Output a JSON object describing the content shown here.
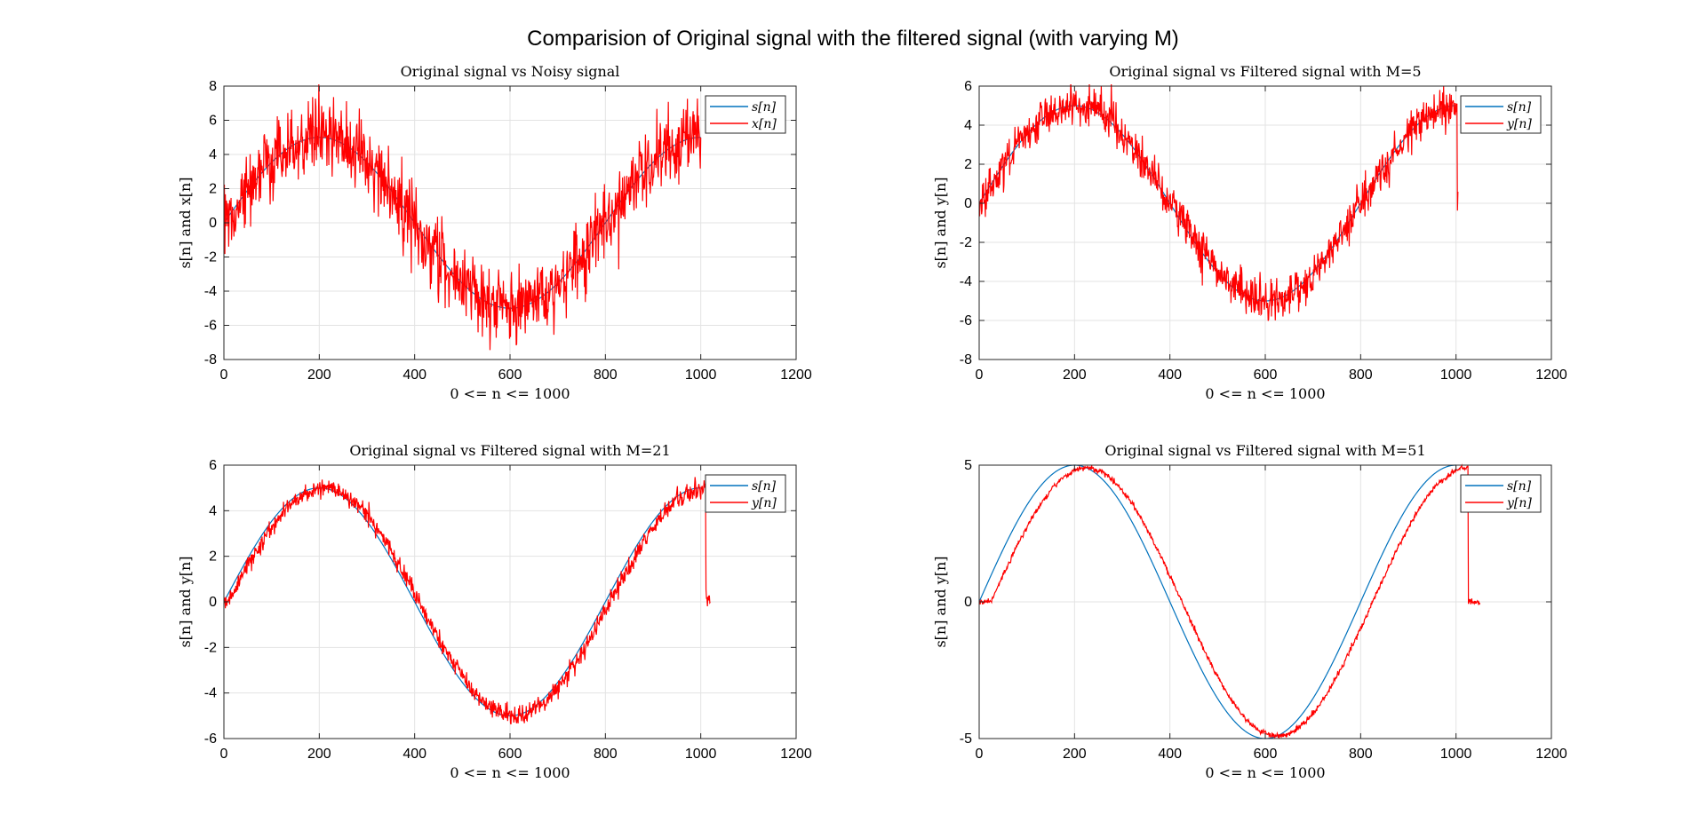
{
  "figure_title": "Comparision of Original signal with the filtered signal (with varying M)",
  "colors": {
    "original": "#0072BD",
    "filtered": "#FF0000",
    "grid": "#e3e3e3",
    "axes": "#262626"
  },
  "chart_data": [
    {
      "type": "line",
      "title": "Original signal vs Noisy signal",
      "xlabel": "0 <= n <= 1000",
      "ylabel": "s[n] and x[n]",
      "xlim": [
        0,
        1200
      ],
      "ylim": [
        -8,
        8
      ],
      "xticks": [
        "0",
        "200",
        "400",
        "600",
        "800",
        "1000",
        "1200"
      ],
      "yticks": [
        "-8",
        "-6",
        "-4",
        "-2",
        "0",
        "2",
        "4",
        "6",
        "8"
      ],
      "grid": true,
      "legend_position": "top-right",
      "series": [
        {
          "name": "s[n]",
          "color": "#0072BD",
          "amplitude": 5,
          "period": 800,
          "n_start": 0,
          "n_end": 1000,
          "shift": 0,
          "noise": 0
        },
        {
          "name": "x[n]",
          "color": "#FF0000",
          "amplitude": 5,
          "period": 800,
          "n_start": 0,
          "n_end": 1000,
          "shift": 0,
          "noise": 1.1
        }
      ]
    },
    {
      "type": "line",
      "title": "Original signal vs Filtered signal with M=5",
      "xlabel": "0 <= n <= 1000",
      "ylabel": "s[n] and y[n]",
      "xlim": [
        0,
        1200
      ],
      "ylim": [
        -8,
        6
      ],
      "xticks": [
        "0",
        "200",
        "400",
        "600",
        "800",
        "1000",
        "1200"
      ],
      "yticks": [
        "-8",
        "-6",
        "-4",
        "-2",
        "0",
        "2",
        "4",
        "6"
      ],
      "grid": true,
      "legend_position": "top-right",
      "series": [
        {
          "name": "s[n]",
          "color": "#0072BD",
          "amplitude": 5,
          "period": 800,
          "n_start": 0,
          "n_end": 1000,
          "shift": 0,
          "noise": 0
        },
        {
          "name": "y[n]",
          "color": "#FF0000",
          "amplitude": 5,
          "period": 800,
          "n_start": 0,
          "n_end": 1004,
          "shift": 2,
          "noise": 0.5
        }
      ]
    },
    {
      "type": "line",
      "title": "Original signal vs Filtered signal with M=21",
      "xlabel": "0 <= n <= 1000",
      "ylabel": "s[n] and y[n]",
      "xlim": [
        0,
        1200
      ],
      "ylim": [
        -6,
        6
      ],
      "xticks": [
        "0",
        "200",
        "400",
        "600",
        "800",
        "1000",
        "1200"
      ],
      "yticks": [
        "-6",
        "-4",
        "-2",
        "0",
        "2",
        "4",
        "6"
      ],
      "grid": true,
      "legend_position": "top-right",
      "series": [
        {
          "name": "s[n]",
          "color": "#0072BD",
          "amplitude": 5,
          "period": 800,
          "n_start": 0,
          "n_end": 1000,
          "shift": 0,
          "noise": 0
        },
        {
          "name": "y[n]",
          "color": "#FF0000",
          "amplitude": 5,
          "period": 800,
          "n_start": 0,
          "n_end": 1020,
          "shift": 10,
          "noise": 0.2
        }
      ]
    },
    {
      "type": "line",
      "title": "Original signal vs Filtered signal with M=51",
      "xlabel": "0 <= n <= 1000",
      "ylabel": "s[n] and y[n]",
      "xlim": [
        0,
        1200
      ],
      "ylim": [
        -5,
        5
      ],
      "xticks": [
        "0",
        "200",
        "400",
        "600",
        "800",
        "1000",
        "1200"
      ],
      "yticks": [
        "-5",
        "0",
        "5"
      ],
      "grid": true,
      "legend_position": "top-right",
      "series": [
        {
          "name": "s[n]",
          "color": "#0072BD",
          "amplitude": 5,
          "period": 800,
          "n_start": 0,
          "n_end": 1000,
          "shift": 0,
          "noise": 0
        },
        {
          "name": "y[n]",
          "color": "#FF0000",
          "amplitude": 4.9,
          "period": 800,
          "n_start": 0,
          "n_end": 1050,
          "shift": 25,
          "noise": 0.05
        }
      ]
    }
  ]
}
